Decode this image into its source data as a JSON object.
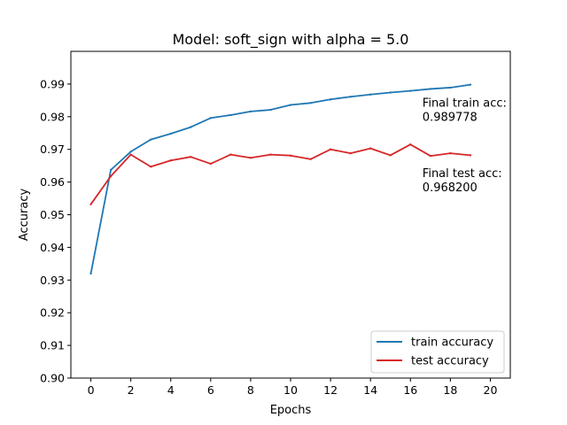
{
  "chart_data": {
    "type": "line",
    "title": "Model: soft_sign with alpha = 5.0",
    "xlabel": "Epochs",
    "ylabel": "Accuracy",
    "xlim": [
      -1,
      21
    ],
    "ylim": [
      0.9,
      1.0
    ],
    "xticks": [
      0,
      2,
      4,
      6,
      8,
      10,
      12,
      14,
      16,
      18,
      20
    ],
    "xtick_labels": [
      "0",
      "2",
      "4",
      "6",
      "8",
      "10",
      "12",
      "14",
      "16",
      "18",
      "20"
    ],
    "yticks": [
      0.9,
      0.91,
      0.92,
      0.93,
      0.94,
      0.95,
      0.96,
      0.97,
      0.98,
      0.99
    ],
    "ytick_labels": [
      "0.90",
      "0.91",
      "0.92",
      "0.93",
      "0.94",
      "0.95",
      "0.96",
      "0.97",
      "0.98",
      "0.99"
    ],
    "grid": false,
    "legend_position": "bottom-right",
    "x": [
      0,
      1,
      2,
      3,
      4,
      5,
      6,
      7,
      8,
      9,
      10,
      11,
      12,
      13,
      14,
      15,
      16,
      17,
      18,
      19
    ],
    "series": [
      {
        "name": "train accuracy",
        "color": "#1f77b4",
        "values": [
          0.932,
          0.9637,
          0.9693,
          0.973,
          0.9748,
          0.9768,
          0.9796,
          0.9805,
          0.9816,
          0.9821,
          0.9836,
          0.9842,
          0.9853,
          0.9861,
          0.9868,
          0.9874,
          0.9879,
          0.9885,
          0.9889,
          0.9898
        ]
      },
      {
        "name": "test accuracy",
        "color": "#d62728",
        "values": [
          0.9532,
          0.9618,
          0.9684,
          0.9647,
          0.9666,
          0.9677,
          0.9656,
          0.9684,
          0.9674,
          0.9684,
          0.9681,
          0.967,
          0.97,
          0.9688,
          0.9703,
          0.9682,
          0.9715,
          0.968,
          0.9688,
          0.9682
        ]
      }
    ],
    "annotations": [
      {
        "lines": [
          "Final train acc:",
          "0.989778"
        ],
        "x": 16.6,
        "y": 0.983
      },
      {
        "lines": [
          "Final test acc:",
          "0.968200"
        ],
        "x": 16.6,
        "y": 0.9615
      }
    ]
  }
}
